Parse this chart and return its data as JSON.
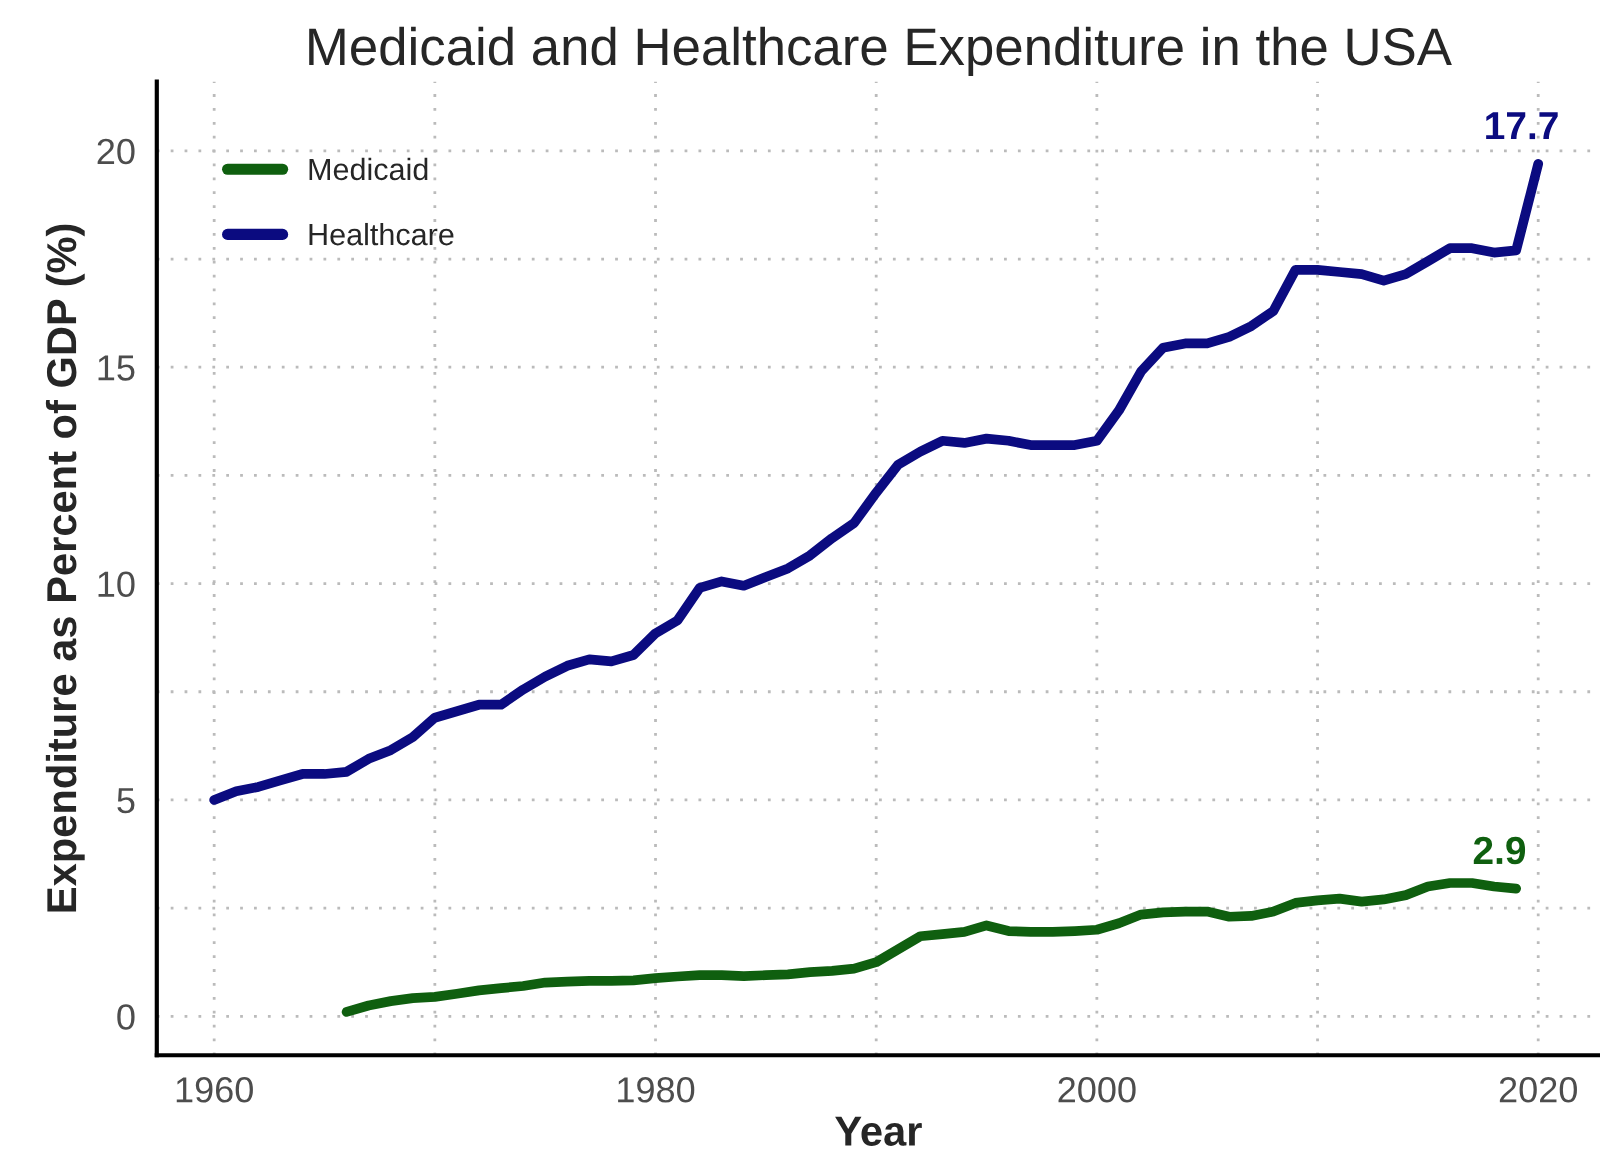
{
  "chart_data": {
    "type": "line",
    "title": "Medicaid and Healthcare Expenditure in the USA",
    "xlabel": "Year",
    "ylabel": "Expenditure as Percent of GDP (%)",
    "series": [
      {
        "name": "Medicaid",
        "color": "#0f5f0f",
        "x": [
          1966,
          1967,
          1968,
          1969,
          1970,
          1971,
          1972,
          1973,
          1974,
          1975,
          1976,
          1977,
          1978,
          1979,
          1980,
          1981,
          1982,
          1983,
          1984,
          1985,
          1986,
          1987,
          1988,
          1989,
          1990,
          1991,
          1992,
          1993,
          1994,
          1995,
          1996,
          1997,
          1998,
          1999,
          2000,
          2001,
          2002,
          2003,
          2004,
          2005,
          2006,
          2007,
          2008,
          2009,
          2010,
          2011,
          2012,
          2013,
          2014,
          2015,
          2016,
          2017,
          2018,
          2019
        ],
        "values": [
          0.1,
          0.25,
          0.35,
          0.42,
          0.45,
          0.52,
          0.6,
          0.65,
          0.7,
          0.78,
          0.8,
          0.82,
          0.82,
          0.83,
          0.88,
          0.92,
          0.95,
          0.95,
          0.93,
          0.95,
          0.97,
          1.02,
          1.05,
          1.1,
          1.25,
          1.55,
          1.85,
          1.9,
          1.95,
          2.1,
          1.97,
          1.95,
          1.95,
          1.97,
          2.0,
          2.15,
          2.35,
          2.4,
          2.42,
          2.42,
          2.3,
          2.32,
          2.42,
          2.62,
          2.68,
          2.72,
          2.65,
          2.7,
          2.8,
          3.0,
          3.08,
          3.08,
          3.0,
          2.95
        ]
      },
      {
        "name": "Healthcare",
        "color": "#0b0b80",
        "x": [
          1960,
          1961,
          1962,
          1963,
          1964,
          1965,
          1966,
          1967,
          1968,
          1969,
          1970,
          1971,
          1972,
          1973,
          1974,
          1975,
          1976,
          1977,
          1978,
          1979,
          1980,
          1981,
          1982,
          1983,
          1984,
          1985,
          1986,
          1987,
          1988,
          1989,
          1990,
          1991,
          1992,
          1993,
          1994,
          1995,
          1996,
          1997,
          1998,
          1999,
          2000,
          2001,
          2002,
          2003,
          2004,
          2005,
          2006,
          2007,
          2008,
          2009,
          2010,
          2011,
          2012,
          2013,
          2014,
          2015,
          2016,
          2017,
          2018,
          2019,
          2020
        ],
        "values": [
          5.0,
          5.2,
          5.3,
          5.45,
          5.6,
          5.6,
          5.65,
          5.95,
          6.15,
          6.45,
          6.9,
          7.05,
          7.2,
          7.2,
          7.55,
          7.85,
          8.1,
          8.25,
          8.2,
          8.35,
          8.85,
          9.15,
          9.9,
          10.05,
          9.95,
          10.15,
          10.35,
          10.65,
          11.05,
          11.4,
          12.1,
          12.75,
          13.05,
          13.3,
          13.25,
          13.35,
          13.3,
          13.2,
          13.2,
          13.2,
          13.3,
          14.0,
          14.9,
          15.45,
          15.55,
          15.55,
          15.7,
          15.95,
          16.3,
          17.25,
          17.25,
          17.2,
          17.15,
          17.0,
          17.15,
          17.45,
          17.75,
          17.75,
          17.65,
          17.7,
          19.7
        ]
      }
    ],
    "annotations": [
      "2.9",
      "17.7"
    ],
    "xlim": [
      1957.4,
      2022.8
    ],
    "ylim": [
      -0.9,
      21.6
    ],
    "xticks": [
      1960,
      1980,
      2000,
      2020
    ],
    "yticks": [
      0,
      5,
      10,
      15,
      20
    ],
    "grid": true,
    "legend": "top left",
    "line_style": "solid",
    "marker": "none"
  }
}
